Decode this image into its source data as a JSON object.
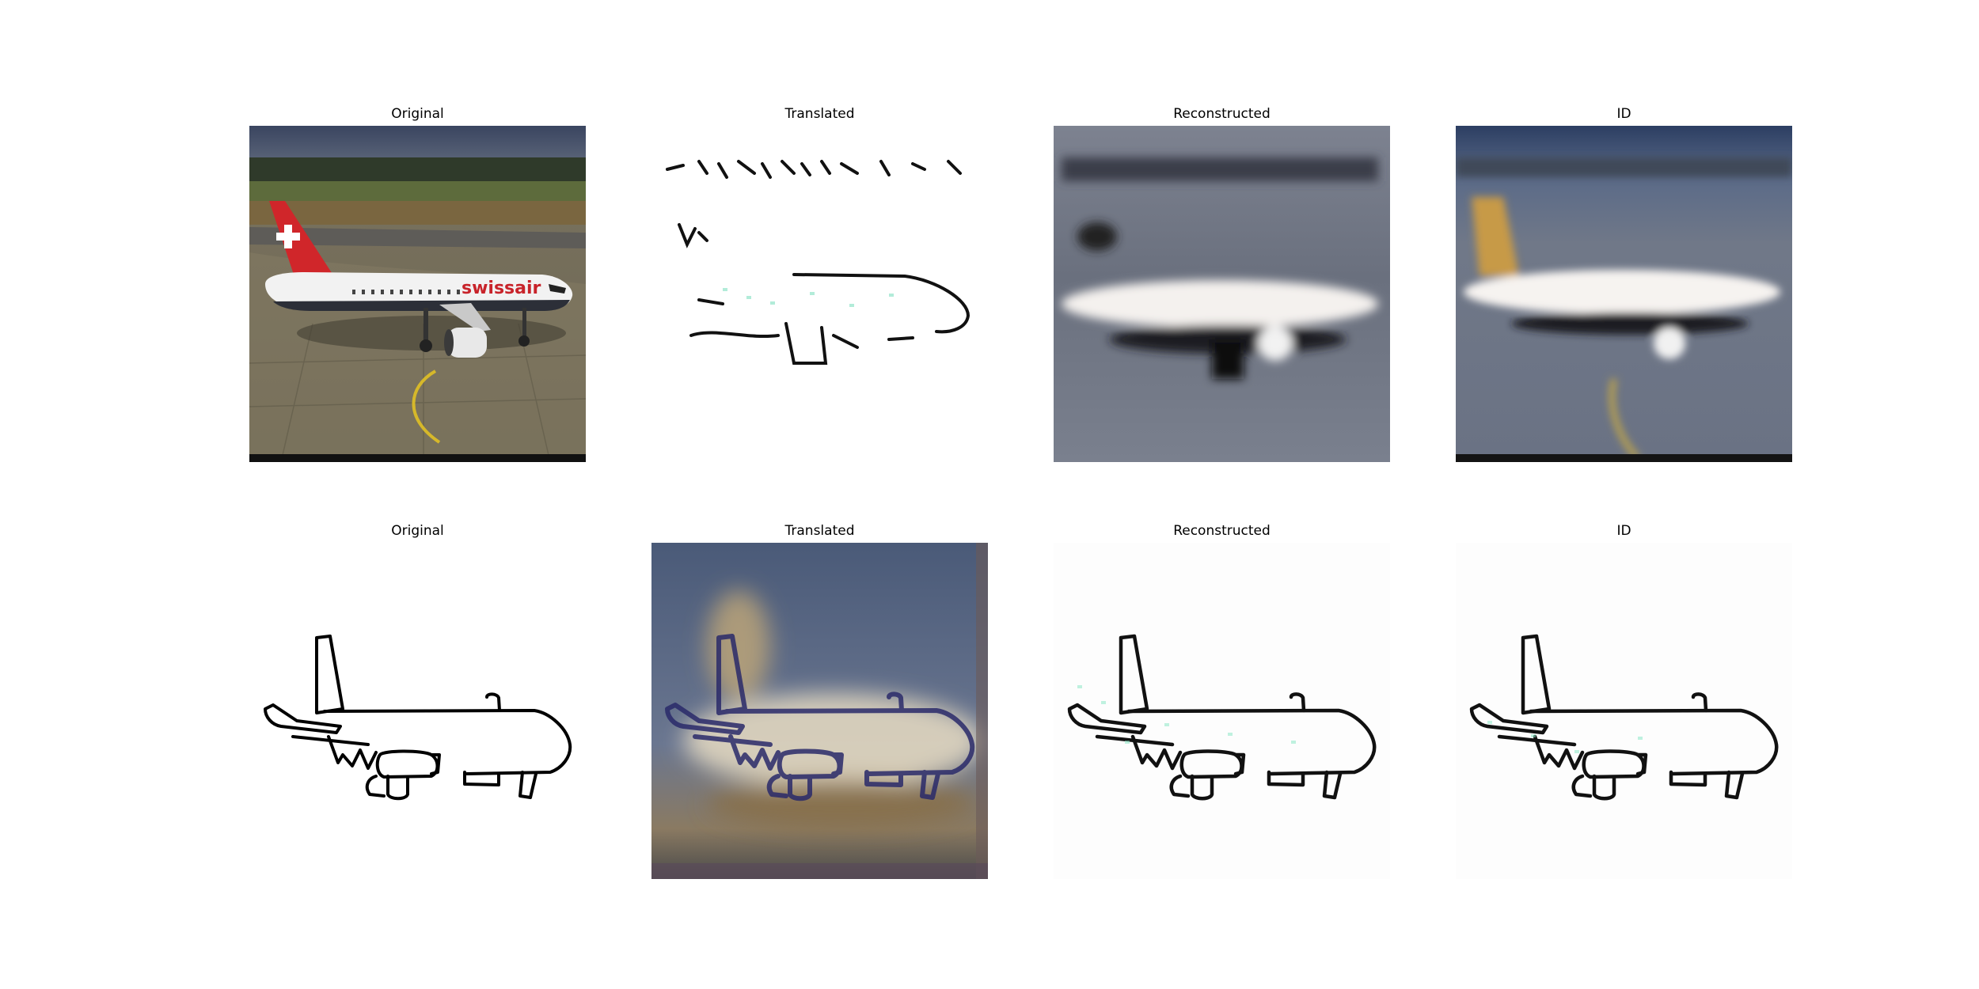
{
  "figure": {
    "rows": [
      {
        "name": "photo-to-sketch",
        "panels": [
          {
            "title": "Original",
            "content": "photo of Swiss airliner on taxiway"
          },
          {
            "title": "Translated"
          },
          {
            "title": "Reconstructed"
          },
          {
            "title": "ID"
          }
        ],
        "livery_text": "swissair"
      },
      {
        "name": "sketch-to-photo",
        "panels": [
          {
            "title": "Original"
          },
          {
            "title": "Translated"
          },
          {
            "title": "Reconstructed"
          },
          {
            "title": "ID"
          }
        ]
      }
    ]
  }
}
